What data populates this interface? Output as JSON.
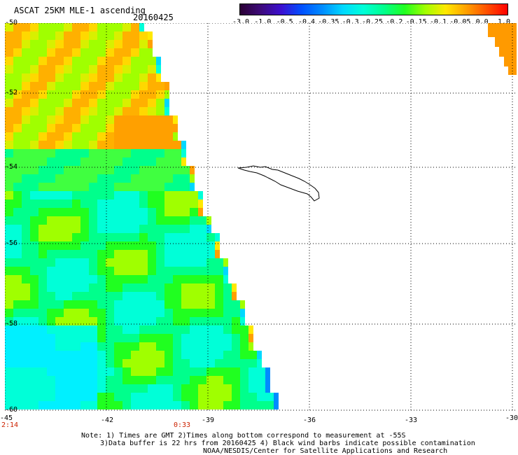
{
  "header": {
    "title": "ASCAT 25KM MLE-1 ascending",
    "date": "20160425"
  },
  "colorbar": {
    "labels": [
      "-3.0",
      "-1.0",
      "-0.5",
      "-0.4",
      "-0.35",
      "-0.3",
      "-0.25",
      "-0.2",
      "-0.15",
      "-0.1",
      "-0.05",
      "0.0",
      "1.0"
    ],
    "colors": [
      "#2a0033",
      "#3d0a7a",
      "#3b0fd0",
      "#0050ff",
      "#008cff",
      "#00d8ff",
      "#00ffd8",
      "#00ff8c",
      "#20ff20",
      "#a0ff00",
      "#ffe800",
      "#ffa000",
      "#ff5000",
      "#ff0000"
    ]
  },
  "map": {
    "lat_labels": [
      "-50",
      "-52",
      "-54",
      "-56",
      "-58",
      "-60"
    ],
    "lon_labels": [
      "-45",
      "-42",
      "-39",
      "-36",
      "-33",
      "-30"
    ],
    "time_labels": [
      "2:14",
      "0:33"
    ]
  },
  "notes": {
    "line1": "Note: 1) Times are GMT 2)Times along bottom correspond to measurement at -55S",
    "line2": "3)Data buffer is 22 hrs from 20160425 4) Black wind barbs indicate possible contamination",
    "line3": "NOAA/NESDIS/Center for Satellite Applications and Research"
  }
}
